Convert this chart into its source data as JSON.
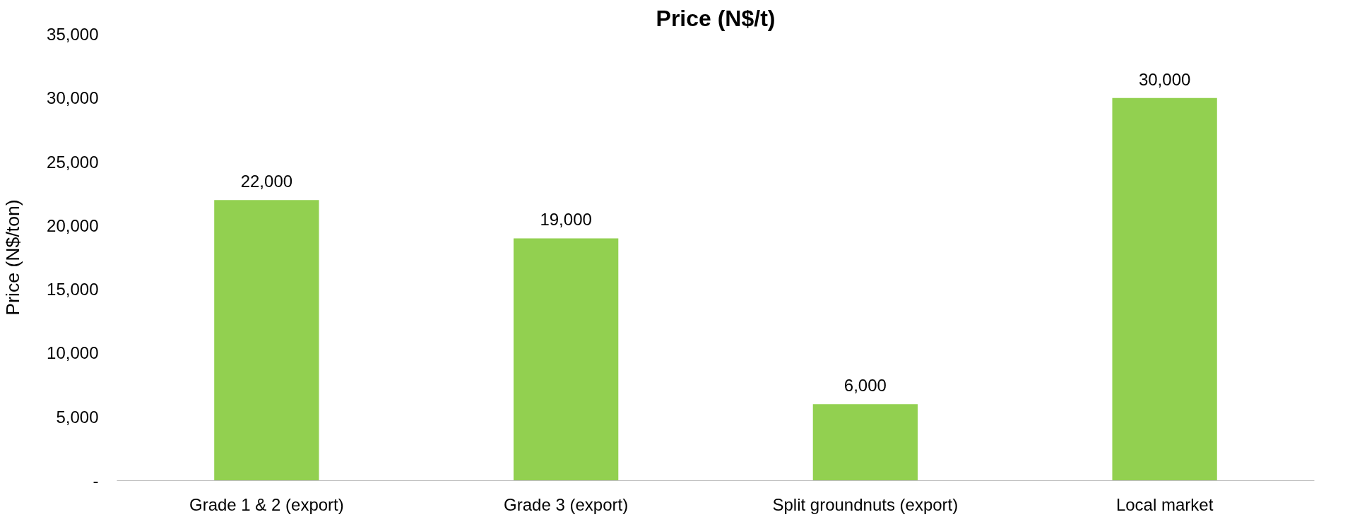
{
  "chart_data": {
    "type": "bar",
    "title": "Price (N$/t)",
    "ylabel": "Price (N$/ton)",
    "categories": [
      "Grade 1 & 2 (export)",
      "Grade 3 (export)",
      "Split groundnuts (export)",
      "Local market"
    ],
    "values": [
      22000,
      19000,
      6000,
      30000
    ],
    "color": "#92d050",
    "ylim": [
      0,
      35000
    ],
    "yticks": [
      {
        "value": 0,
        "label": "-"
      },
      {
        "value": 5000,
        "label": "5,000"
      },
      {
        "value": 10000,
        "label": "10,000"
      },
      {
        "value": 15000,
        "label": "15,000"
      },
      {
        "value": 20000,
        "label": "20,000"
      },
      {
        "value": 25000,
        "label": "25,000"
      },
      {
        "value": 30000,
        "label": "30,000"
      },
      {
        "value": 35000,
        "label": "35,000"
      }
    ],
    "value_labels": [
      "22,000",
      "19,000",
      "6,000",
      "30,000"
    ],
    "grid": false
  }
}
